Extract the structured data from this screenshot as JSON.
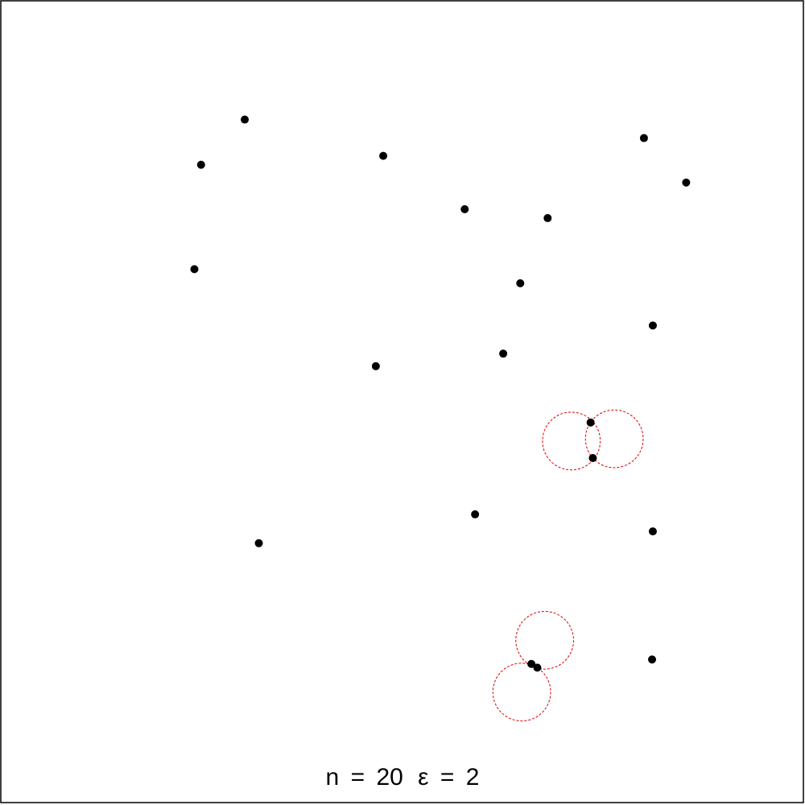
{
  "chart_data": {
    "type": "scatter",
    "title": "n = 20 ε = 2",
    "caption": {
      "n_label": "n",
      "n_value": "20",
      "eps_label": "ε",
      "eps_value": "2",
      "equals": "="
    },
    "xlim": [
      0,
      100
    ],
    "ylim": [
      0,
      100
    ],
    "grid": false,
    "legend": "none",
    "colors": {
      "points": "#000000",
      "circles": "#dd0000",
      "frame": "#000000"
    },
    "circle_radius": 3.9,
    "points": [
      {
        "x": 28.7,
        "y": 88.2
      },
      {
        "x": 22.8,
        "y": 82.1
      },
      {
        "x": 47.4,
        "y": 83.3
      },
      {
        "x": 82.6,
        "y": 85.7
      },
      {
        "x": 88.3,
        "y": 79.7
      },
      {
        "x": 58.4,
        "y": 76.1
      },
      {
        "x": 69.6,
        "y": 74.9
      },
      {
        "x": 21.9,
        "y": 68.0
      },
      {
        "x": 65.9,
        "y": 66.1
      },
      {
        "x": 83.8,
        "y": 60.4
      },
      {
        "x": 63.6,
        "y": 56.6
      },
      {
        "x": 46.4,
        "y": 54.9
      },
      {
        "x": 75.4,
        "y": 47.3
      },
      {
        "x": 75.7,
        "y": 42.5
      },
      {
        "x": 59.8,
        "y": 34.9
      },
      {
        "x": 30.6,
        "y": 31.0
      },
      {
        "x": 83.8,
        "y": 32.6
      },
      {
        "x": 67.4,
        "y": 14.7
      },
      {
        "x": 68.2,
        "y": 14.2
      },
      {
        "x": 83.7,
        "y": 15.3
      }
    ],
    "circles": [
      {
        "cx": 72.8,
        "cy": 44.8
      },
      {
        "cx": 78.6,
        "cy": 45.1
      },
      {
        "cx": 69.2,
        "cy": 17.9
      },
      {
        "cx": 66.1,
        "cy": 10.9
      }
    ]
  }
}
